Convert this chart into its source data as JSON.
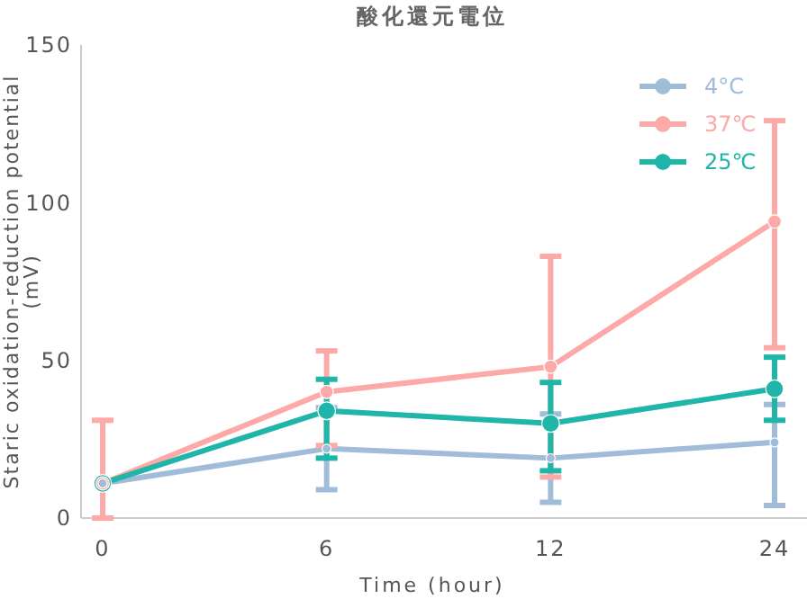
{
  "chart_data": {
    "type": "line",
    "title": "酸化還元電位",
    "xlabel": "Time (hour)",
    "ylabel": "Staric oxidation-reduction potential\n(mV)",
    "categories": [
      "0",
      "6",
      "12",
      "24"
    ],
    "ylim": [
      0,
      150
    ],
    "yticks": [
      0,
      50,
      100,
      150
    ],
    "legend": "top right",
    "marker": "circle",
    "line_style": "solid",
    "series": [
      {
        "name": "4°C",
        "color": "#a0bcd8",
        "values": [
          11,
          22,
          19,
          24
        ],
        "errors": [
          null,
          [
            9,
            35
          ],
          [
            5,
            33
          ],
          [
            4,
            36
          ]
        ]
      },
      {
        "name": "37℃",
        "color": "#fca9a7",
        "values": [
          11,
          40,
          48,
          94
        ],
        "errors": [
          [
            0,
            31
          ],
          [
            23,
            53
          ],
          [
            13,
            83
          ],
          [
            54,
            126
          ]
        ]
      },
      {
        "name": "25℃",
        "color": "#1fb5a8",
        "values": [
          11,
          34,
          30,
          41
        ],
        "errors": [
          null,
          [
            19,
            44
          ],
          [
            15,
            43
          ],
          [
            31,
            51
          ]
        ]
      }
    ]
  }
}
